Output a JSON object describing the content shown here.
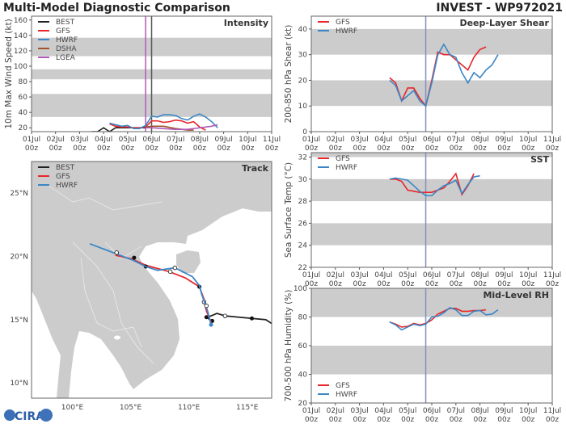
{
  "header": {
    "title": "Multi-Model Diagnostic Comparison",
    "storm": "INVEST - WP972021"
  },
  "colors": {
    "BEST": "#222222",
    "GFS": "#e8262a",
    "HWRF": "#3b86c6",
    "DSHA": "#a0522d",
    "LGEA": "#b05ab8",
    "band": "#cccccc",
    "land": "#cccccc",
    "current_time_line": "#7f93bf"
  },
  "time_axis": {
    "ticks": [
      [
        "01Jul",
        "00z"
      ],
      [
        "02Jul",
        "00z"
      ],
      [
        "03Jul",
        "00z"
      ],
      [
        "04Jul",
        "00z"
      ],
      [
        "05Jul",
        "00z"
      ],
      [
        "06Jul",
        "00z"
      ],
      [
        "07Jul",
        "00z"
      ],
      [
        "08Jul",
        "00z"
      ],
      [
        "09Jul",
        "00z"
      ],
      [
        "10Jul",
        "00z"
      ],
      [
        "11Jul",
        "00z"
      ]
    ],
    "range": [
      "01Jul00",
      "11Jul00"
    ]
  },
  "chart_data": [
    {
      "id": "intensity",
      "type": "line",
      "title": "Intensity",
      "ylabel": "10m Max Wind Speed (kt)",
      "ylim": [
        15,
        165
      ],
      "yticks": [
        20,
        40,
        60,
        80,
        100,
        120,
        140,
        160
      ],
      "bands": [
        [
          34,
          64
        ],
        [
          83,
          96
        ],
        [
          113,
          137
        ]
      ],
      "vlines": [
        {
          "x": "05Jul18",
          "color": "#b05ab8"
        },
        {
          "x": "06Jul00",
          "color": "#555555"
        }
      ],
      "legend": "top-left",
      "series": [
        {
          "name": "BEST",
          "points": [
            [
              "03Jul12",
              15
            ],
            [
              "03Jul18",
              15
            ],
            [
              "04Jul00",
              20
            ],
            [
              "04Jul06",
              15
            ],
            [
              "04Jul12",
              20
            ],
            [
              "04Jul18",
              20
            ],
            [
              "05Jul00",
              20
            ],
            [
              "05Jul06",
              20
            ],
            [
              "05Jul12",
              20
            ],
            [
              "05Jul18",
              20
            ]
          ]
        },
        {
          "name": "GFS",
          "points": [
            [
              "04Jul06",
              25
            ],
            [
              "04Jul12",
              22
            ],
            [
              "04Jul18",
              21
            ],
            [
              "05Jul00",
              21
            ],
            [
              "05Jul06",
              20
            ],
            [
              "05Jul12",
              20
            ],
            [
              "05Jul18",
              21
            ],
            [
              "06Jul00",
              29
            ],
            [
              "06Jul06",
              29
            ],
            [
              "06Jul12",
              27
            ],
            [
              "06Jul18",
              28
            ],
            [
              "07Jul00",
              30
            ],
            [
              "07Jul06",
              29
            ],
            [
              "07Jul12",
              26
            ],
            [
              "07Jul18",
              28
            ],
            [
              "08Jul00",
              21
            ],
            [
              "08Jul06",
              17
            ]
          ]
        },
        {
          "name": "HWRF",
          "points": [
            [
              "04Jul06",
              26
            ],
            [
              "04Jul12",
              24
            ],
            [
              "04Jul18",
              22
            ],
            [
              "05Jul00",
              23
            ],
            [
              "05Jul06",
              19
            ],
            [
              "05Jul12",
              19
            ],
            [
              "05Jul18",
              23
            ],
            [
              "06Jul00",
              35
            ],
            [
              "06Jul06",
              34
            ],
            [
              "06Jul12",
              37
            ],
            [
              "06Jul18",
              37
            ],
            [
              "07Jul00",
              36
            ],
            [
              "07Jul06",
              32
            ],
            [
              "07Jul12",
              30
            ],
            [
              "07Jul18",
              35
            ],
            [
              "08Jul00",
              38
            ],
            [
              "08Jul06",
              34
            ],
            [
              "08Jul12",
              28
            ],
            [
              "08Jul18",
              20
            ]
          ]
        },
        {
          "name": "DSHA",
          "points": [
            [
              "05Jul18",
              21
            ],
            [
              "06Jul00",
              22
            ],
            [
              "06Jul12",
              22
            ],
            [
              "07Jul00",
              19
            ],
            [
              "07Jul12",
              17
            ],
            [
              "07Jul18",
              17
            ]
          ]
        },
        {
          "name": "LGEA",
          "points": [
            [
              "05Jul18",
              20
            ],
            [
              "06Jul00",
              20
            ],
            [
              "06Jul12",
              19
            ],
            [
              "07Jul00",
              18
            ],
            [
              "07Jul12",
              18
            ],
            [
              "08Jul00",
              20
            ],
            [
              "08Jul12",
              22
            ],
            [
              "08Jul18",
              24
            ]
          ]
        }
      ]
    },
    {
      "id": "shear",
      "type": "line",
      "title": "Deep-Layer Shear",
      "ylabel": "200-850 hPa Shear (kt)",
      "ylim": [
        0,
        45
      ],
      "yticks": [
        0,
        10,
        20,
        30,
        40
      ],
      "bands": [
        [
          10,
          20
        ],
        [
          30,
          40
        ]
      ],
      "vlines": [
        {
          "x": "05Jul18",
          "color": "#7f93bf"
        }
      ],
      "legend": "top-left",
      "series": [
        {
          "name": "GFS",
          "points": [
            [
              "04Jul06",
              21
            ],
            [
              "04Jul12",
              19
            ],
            [
              "04Jul18",
              12
            ],
            [
              "05Jul00",
              17
            ],
            [
              "05Jul06",
              17
            ],
            [
              "05Jul12",
              13
            ],
            [
              "05Jul18",
              10
            ],
            [
              "06Jul00",
              20
            ],
            [
              "06Jul06",
              31
            ],
            [
              "06Jul12",
              30
            ],
            [
              "06Jul18",
              30
            ],
            [
              "07Jul00",
              28
            ],
            [
              "07Jul06",
              26
            ],
            [
              "07Jul12",
              24
            ],
            [
              "07Jul18",
              29
            ],
            [
              "08Jul00",
              32
            ],
            [
              "08Jul06",
              33
            ]
          ]
        },
        {
          "name": "HWRF",
          "points": [
            [
              "04Jul06",
              20
            ],
            [
              "04Jul12",
              18
            ],
            [
              "04Jul18",
              12
            ],
            [
              "05Jul00",
              14
            ],
            [
              "05Jul06",
              16
            ],
            [
              "05Jul12",
              12
            ],
            [
              "05Jul18",
              10
            ],
            [
              "06Jul00",
              19
            ],
            [
              "06Jul06",
              30
            ],
            [
              "06Jul12",
              34
            ],
            [
              "06Jul18",
              30
            ],
            [
              "07Jul00",
              29
            ],
            [
              "07Jul06",
              23
            ],
            [
              "07Jul12",
              19
            ],
            [
              "07Jul18",
              23
            ],
            [
              "08Jul00",
              21
            ],
            [
              "08Jul06",
              24
            ],
            [
              "08Jul12",
              26
            ],
            [
              "08Jul18",
              30
            ]
          ]
        }
      ]
    },
    {
      "id": "sst",
      "type": "line",
      "title": "SST",
      "ylabel": "Sea Surface Temp (°C)",
      "ylim": [
        22,
        32.4
      ],
      "yticks": [
        22,
        24,
        26,
        28,
        30,
        32
      ],
      "bands": [
        [
          24,
          26
        ],
        [
          28,
          30
        ],
        [
          32,
          32.4
        ]
      ],
      "vlines": [
        {
          "x": "05Jul18",
          "color": "#7f93bf"
        }
      ],
      "legend": "top-left",
      "series": [
        {
          "name": "GFS",
          "points": [
            [
              "04Jul06",
              30.0
            ],
            [
              "04Jul12",
              30.0
            ],
            [
              "04Jul18",
              29.8
            ],
            [
              "05Jul00",
              29.0
            ],
            [
              "05Jul06",
              28.9
            ],
            [
              "05Jul12",
              28.8
            ],
            [
              "05Jul18",
              28.8
            ],
            [
              "06Jul00",
              28.8
            ],
            [
              "06Jul06",
              29.0
            ],
            [
              "06Jul12",
              29.2
            ],
            [
              "06Jul18",
              29.8
            ],
            [
              "07Jul00",
              30.5
            ],
            [
              "07Jul06",
              28.6
            ],
            [
              "07Jul12",
              29.4
            ],
            [
              "07Jul18",
              30.5
            ]
          ]
        },
        {
          "name": "HWRF",
          "points": [
            [
              "04Jul06",
              30.0
            ],
            [
              "04Jul12",
              30.1
            ],
            [
              "04Jul18",
              30.0
            ],
            [
              "05Jul00",
              29.9
            ],
            [
              "05Jul06",
              29.4
            ],
            [
              "05Jul12",
              28.9
            ],
            [
              "05Jul18",
              28.5
            ],
            [
              "06Jul00",
              28.5
            ],
            [
              "06Jul06",
              29.0
            ],
            [
              "06Jul12",
              29.4
            ],
            [
              "06Jul18",
              29.6
            ],
            [
              "07Jul00",
              29.9
            ],
            [
              "07Jul06",
              28.7
            ],
            [
              "07Jul12",
              29.5
            ],
            [
              "07Jul18",
              30.2
            ],
            [
              "08Jul00",
              30.3
            ]
          ]
        }
      ]
    },
    {
      "id": "rh",
      "type": "line",
      "title": "Mid-Level RH",
      "ylabel": "700-500 hPa Humidity (%)",
      "ylim": [
        20,
        100
      ],
      "yticks": [
        20,
        40,
        60,
        80,
        100
      ],
      "bands": [
        [
          40,
          60
        ],
        [
          80,
          100
        ]
      ],
      "vlines": [
        {
          "x": "05Jul18",
          "color": "#7f93bf"
        }
      ],
      "legend": "bottom-left",
      "series": [
        {
          "name": "GFS",
          "points": [
            [
              "04Jul06",
              76.5
            ],
            [
              "04Jul12",
              75
            ],
            [
              "04Jul18",
              73
            ],
            [
              "05Jul00",
              73.5
            ],
            [
              "05Jul06",
              75.5
            ],
            [
              "05Jul12",
              74.5
            ],
            [
              "05Jul18",
              75.5
            ],
            [
              "06Jul00",
              78
            ],
            [
              "06Jul06",
              82
            ],
            [
              "06Jul12",
              84
            ],
            [
              "06Jul18",
              86
            ],
            [
              "07Jul00",
              86
            ],
            [
              "07Jul06",
              84
            ],
            [
              "07Jul12",
              84
            ],
            [
              "07Jul18",
              84.5
            ],
            [
              "08Jul00",
              84.5
            ],
            [
              "08Jul06",
              85
            ]
          ]
        },
        {
          "name": "HWRF",
          "points": [
            [
              "04Jul06",
              76.5
            ],
            [
              "04Jul12",
              74.5
            ],
            [
              "04Jul18",
              71
            ],
            [
              "05Jul00",
              73
            ],
            [
              "05Jul06",
              75
            ],
            [
              "05Jul12",
              74
            ],
            [
              "05Jul18",
              75
            ],
            [
              "06Jul00",
              80
            ],
            [
              "06Jul06",
              80.5
            ],
            [
              "06Jul12",
              83
            ],
            [
              "06Jul18",
              86.5
            ],
            [
              "07Jul00",
              85
            ],
            [
              "07Jul06",
              81
            ],
            [
              "07Jul12",
              81
            ],
            [
              "07Jul18",
              84
            ],
            [
              "08Jul00",
              84.5
            ],
            [
              "08Jul06",
              81.5
            ],
            [
              "08Jul12",
              82
            ],
            [
              "08Jul18",
              85
            ]
          ]
        }
      ]
    },
    {
      "id": "track",
      "type": "line",
      "title": "Track",
      "xlim": [
        96.5,
        117.1
      ],
      "ylim": [
        8.8,
        27.5
      ],
      "xticks": [
        100,
        105,
        110,
        115
      ],
      "xtick_labels": [
        "100°E",
        "105°E",
        "110°E",
        "115°E"
      ],
      "yticks": [
        10,
        15,
        20,
        25
      ],
      "ytick_labels": [
        "10°N",
        "15°N",
        "20°N",
        "25°N"
      ],
      "legend": "top-left",
      "series": [
        {
          "name": "BEST",
          "points": [
            [
              117.1,
              14.7
            ],
            [
              116.6,
              15.0
            ],
            [
              115.4,
              15.1
            ],
            [
              113.1,
              15.3
            ],
            [
              112.4,
              15.5
            ],
            [
              111.9,
              15.3
            ],
            [
              111.5,
              15.2
            ],
            [
              111.8,
              15.0
            ],
            [
              112.0,
              14.9
            ]
          ],
          "open_markers": [
            [
              113.1,
              15.3
            ]
          ],
          "filled_markers": [
            [
              115.4,
              15.1
            ],
            [
              111.5,
              15.2
            ],
            [
              112.0,
              14.9
            ]
          ]
        },
        {
          "name": "GFS",
          "points": [
            [
              111.9,
              14.8
            ],
            [
              111.5,
              15.7
            ],
            [
              111.3,
              16.6
            ],
            [
              110.9,
              17.6
            ],
            [
              109.7,
              18.3
            ],
            [
              108.3,
              18.8
            ],
            [
              106.3,
              19.3
            ],
            [
              105.1,
              19.8
            ],
            [
              103.7,
              20.1
            ]
          ],
          "open_markers": [
            [
              108.4,
              18.8
            ],
            [
              111.3,
              16.4
            ]
          ],
          "filled_markers": [
            [
              110.9,
              17.6
            ],
            [
              106.3,
              19.2
            ],
            [
              105.3,
              19.9
            ]
          ]
        },
        {
          "name": "HWRF",
          "points": [
            [
              111.9,
              14.6
            ],
            [
              111.6,
              15.7
            ],
            [
              111.1,
              17.0
            ],
            [
              110.9,
              17.7
            ],
            [
              110.3,
              18.4
            ],
            [
              108.8,
              19.1
            ],
            [
              107.3,
              18.9
            ],
            [
              106.3,
              19.2
            ],
            [
              105.2,
              19.7
            ],
            [
              103.5,
              20.3
            ],
            [
              101.5,
              21.0
            ]
          ],
          "open_markers": [
            [
              108.8,
              19.1
            ],
            [
              103.8,
              20.3
            ],
            [
              111.5,
              16.1
            ]
          ],
          "filled_markers": [
            [
              111.9,
              14.6
            ]
          ]
        }
      ]
    }
  ],
  "logo": {
    "text": "CIRA"
  }
}
